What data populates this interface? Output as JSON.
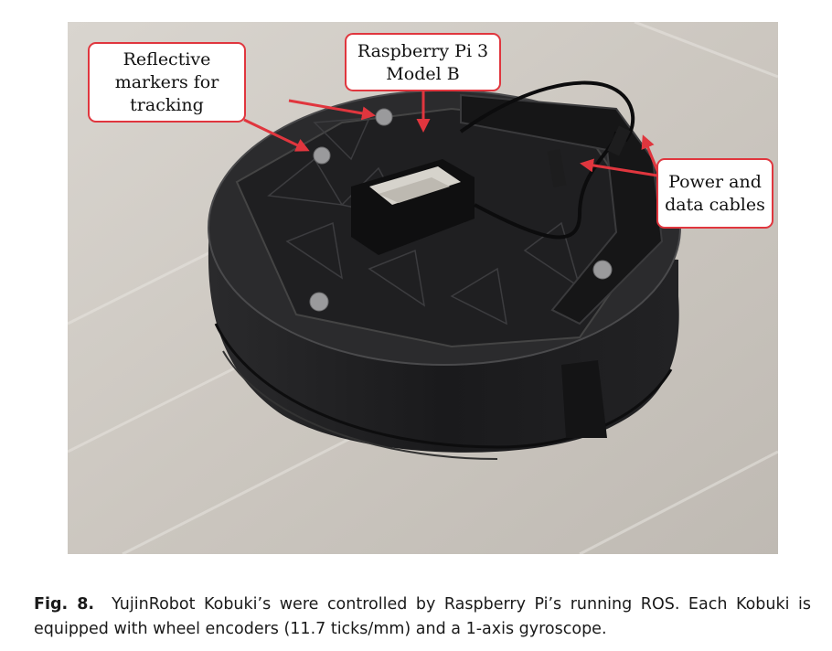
{
  "figure": {
    "callouts": {
      "markers": [
        "Reflective",
        "markers for",
        "tracking"
      ],
      "raspberry": [
        "Raspberry Pi 3",
        "Model B"
      ],
      "cables": [
        "Power and",
        "data cables"
      ]
    },
    "colors": {
      "callout_border": "#e0363e",
      "arrow": "#e0363e",
      "robot_body": "#1c1c1e",
      "floor": "#cfcac4"
    }
  },
  "caption": {
    "label": "Fig. 8.",
    "text": "YujinRobot Kobuki’s were controlled by Raspberry Pi’s running ROS. Each Kobuki is equipped with wheel encoders (11.7 ticks/mm) and a 1-axis gyroscope."
  }
}
